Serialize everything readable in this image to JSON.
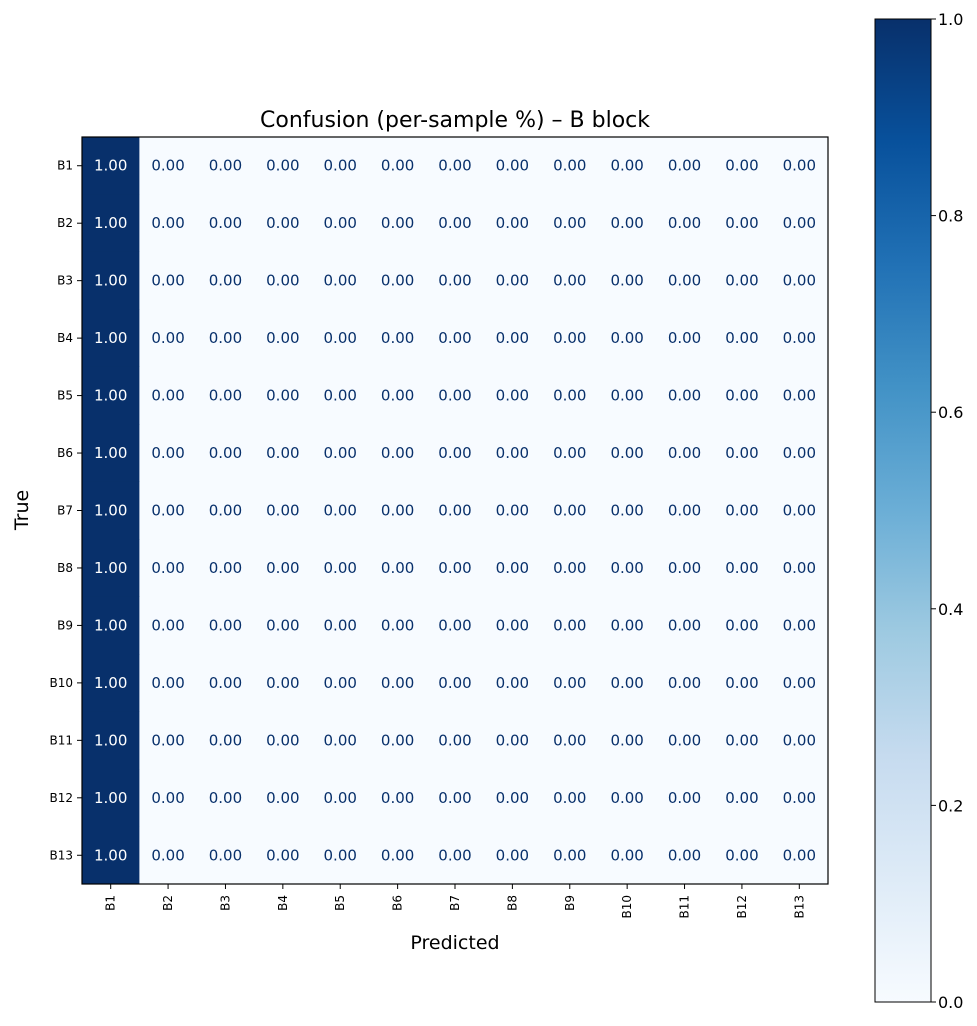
{
  "chart_data": {
    "type": "heatmap",
    "title": "Confusion (per-sample %) – B block",
    "xlabel": "Predicted",
    "ylabel": "True",
    "x_categories": [
      "B1",
      "B2",
      "B3",
      "B4",
      "B5",
      "B6",
      "B7",
      "B8",
      "B9",
      "B10",
      "B11",
      "B12",
      "B13"
    ],
    "y_categories": [
      "B1",
      "B2",
      "B3",
      "B4",
      "B5",
      "B6",
      "B7",
      "B8",
      "B9",
      "B10",
      "B11",
      "B12",
      "B13"
    ],
    "values": [
      [
        1,
        0,
        0,
        0,
        0,
        0,
        0,
        0,
        0,
        0,
        0,
        0,
        0
      ],
      [
        1,
        0,
        0,
        0,
        0,
        0,
        0,
        0,
        0,
        0,
        0,
        0,
        0
      ],
      [
        1,
        0,
        0,
        0,
        0,
        0,
        0,
        0,
        0,
        0,
        0,
        0,
        0
      ],
      [
        1,
        0,
        0,
        0,
        0,
        0,
        0,
        0,
        0,
        0,
        0,
        0,
        0
      ],
      [
        1,
        0,
        0,
        0,
        0,
        0,
        0,
        0,
        0,
        0,
        0,
        0,
        0
      ],
      [
        1,
        0,
        0,
        0,
        0,
        0,
        0,
        0,
        0,
        0,
        0,
        0,
        0
      ],
      [
        1,
        0,
        0,
        0,
        0,
        0,
        0,
        0,
        0,
        0,
        0,
        0,
        0
      ],
      [
        1,
        0,
        0,
        0,
        0,
        0,
        0,
        0,
        0,
        0,
        0,
        0,
        0
      ],
      [
        1,
        0,
        0,
        0,
        0,
        0,
        0,
        0,
        0,
        0,
        0,
        0,
        0
      ],
      [
        1,
        0,
        0,
        0,
        0,
        0,
        0,
        0,
        0,
        0,
        0,
        0,
        0
      ],
      [
        1,
        0,
        0,
        0,
        0,
        0,
        0,
        0,
        0,
        0,
        0,
        0,
        0
      ],
      [
        1,
        0,
        0,
        0,
        0,
        0,
        0,
        0,
        0,
        0,
        0,
        0,
        0
      ],
      [
        1,
        0,
        0,
        0,
        0,
        0,
        0,
        0,
        0,
        0,
        0,
        0,
        0
      ]
    ],
    "value_format_decimals": 2,
    "colorbar": {
      "colormap": "Blues",
      "range": [
        0.0,
        1.0
      ],
      "ticks": [
        "0.0",
        "0.2",
        "0.4",
        "0.6",
        "0.8",
        "1.0"
      ],
      "color_low": "#f7fbff",
      "color_high": "#08306b"
    },
    "text_color_dark_cell": "#ffffff",
    "text_color_light_cell": "#08306b"
  }
}
